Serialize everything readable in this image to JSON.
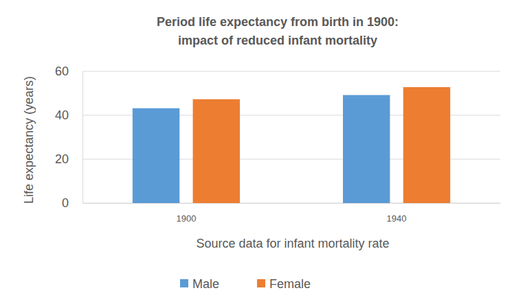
{
  "chart_data": {
    "type": "bar",
    "title": [
      "Period life expectancy from birth in 1900:",
      "impact of reduced infant mortality"
    ],
    "x_label": "Source data for infant mortality rate",
    "y_label": "Life expectancy (years)",
    "categories": [
      "1900",
      "1940"
    ],
    "series": [
      {
        "name": "Male",
        "color": "#5b9bd5",
        "values": [
          43.2,
          49.2
        ]
      },
      {
        "name": "Female",
        "color": "#ed7d31",
        "values": [
          47.3,
          52.8
        ]
      }
    ],
    "ylim": [
      0,
      60
    ],
    "yticks": [
      0,
      20,
      40,
      60
    ],
    "grid": true,
    "legend": "bottom"
  }
}
